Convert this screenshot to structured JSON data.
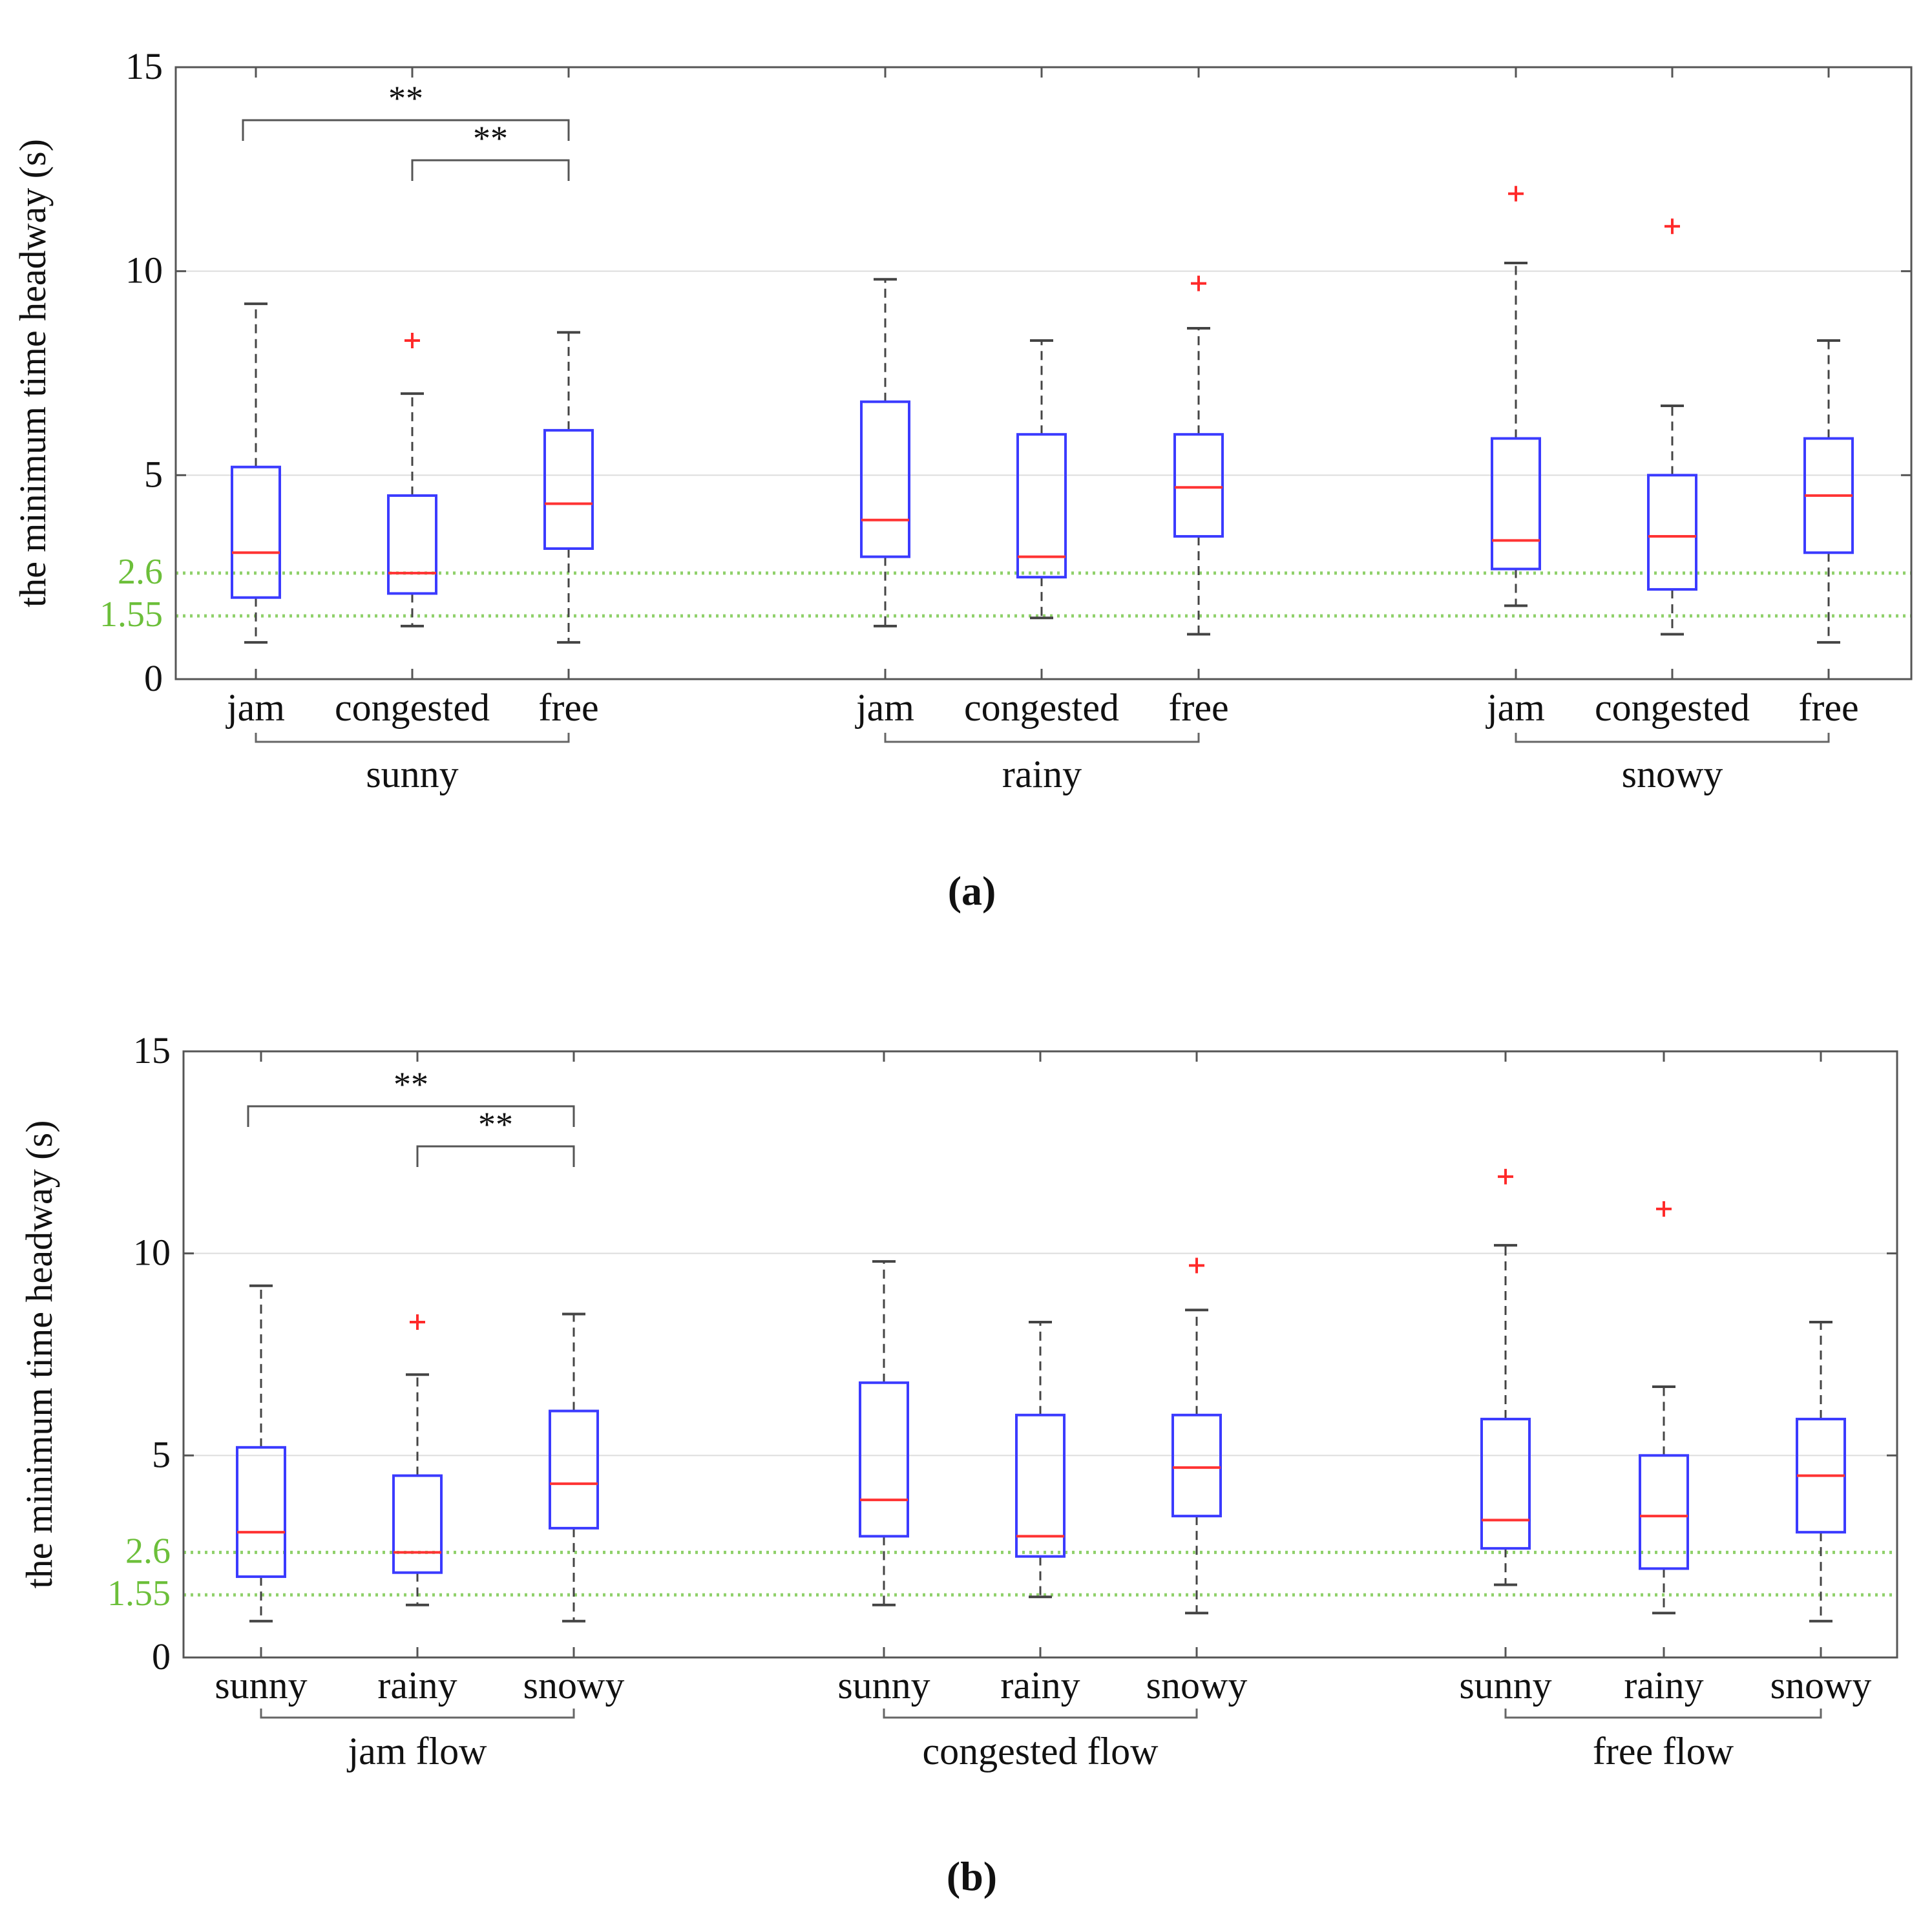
{
  "chart_data": [
    {
      "panel_label": "(a)",
      "type": "boxplot",
      "ylabel": "the minimum time headway (s)",
      "ylim": [
        0,
        15
      ],
      "yticks": [
        "0",
        "5",
        "10",
        "15"
      ],
      "grid": "horizontal",
      "reference_lines": [
        {
          "value": 2.6,
          "label": "2.6"
        },
        {
          "value": 1.55,
          "label": "1.55"
        }
      ],
      "groups": [
        {
          "label": "sunny",
          "categories": [
            "jam",
            "congested",
            "free"
          ]
        },
        {
          "label": "rainy",
          "categories": [
            "jam",
            "congested",
            "free"
          ]
        },
        {
          "label": "snowy",
          "categories": [
            "jam",
            "congested",
            "free"
          ]
        }
      ],
      "boxes": [
        {
          "whisker_low": 0.9,
          "q1": 2.0,
          "median": 3.1,
          "q3": 5.2,
          "whisker_high": 9.2,
          "outliers": []
        },
        {
          "whisker_low": 1.3,
          "q1": 2.1,
          "median": 2.6,
          "q3": 4.5,
          "whisker_high": 7.0,
          "outliers": [
            8.3
          ]
        },
        {
          "whisker_low": 0.9,
          "q1": 3.2,
          "median": 4.3,
          "q3": 6.1,
          "whisker_high": 8.5,
          "outliers": []
        },
        {
          "whisker_low": 1.3,
          "q1": 3.0,
          "median": 3.9,
          "q3": 6.8,
          "whisker_high": 9.8,
          "outliers": []
        },
        {
          "whisker_low": 1.5,
          "q1": 2.5,
          "median": 3.0,
          "q3": 6.0,
          "whisker_high": 8.3,
          "outliers": []
        },
        {
          "whisker_low": 1.1,
          "q1": 3.5,
          "median": 4.7,
          "q3": 6.0,
          "whisker_high": 8.6,
          "outliers": [
            9.7
          ]
        },
        {
          "whisker_low": 1.8,
          "q1": 2.7,
          "median": 3.4,
          "q3": 5.9,
          "whisker_high": 10.2,
          "outliers": [
            11.9
          ]
        },
        {
          "whisker_low": 1.1,
          "q1": 2.2,
          "median": 3.5,
          "q3": 5.0,
          "whisker_high": 6.7,
          "outliers": [
            11.1
          ]
        },
        {
          "whisker_low": 0.9,
          "q1": 3.1,
          "median": 4.5,
          "q3": 5.9,
          "whisker_high": 8.3,
          "outliers": []
        }
      ],
      "significance": [
        {
          "from": 0,
          "to": 2,
          "label": "**"
        },
        {
          "from": 1,
          "to": 2,
          "label": "**"
        }
      ]
    },
    {
      "panel_label": "(b)",
      "type": "boxplot",
      "ylabel": "the minimum time headway (s)",
      "ylim": [
        0,
        15
      ],
      "yticks": [
        "0",
        "5",
        "10",
        "15"
      ],
      "grid": "horizontal",
      "reference_lines": [
        {
          "value": 2.6,
          "label": "2.6"
        },
        {
          "value": 1.55,
          "label": "1.55"
        }
      ],
      "groups": [
        {
          "label": "jam flow",
          "categories": [
            "sunny",
            "rainy",
            "snowy"
          ]
        },
        {
          "label": "congested flow",
          "categories": [
            "sunny",
            "rainy",
            "snowy"
          ]
        },
        {
          "label": "free flow",
          "categories": [
            "sunny",
            "rainy",
            "snowy"
          ]
        }
      ],
      "boxes": [
        {
          "whisker_low": 0.9,
          "q1": 2.0,
          "median": 3.1,
          "q3": 5.2,
          "whisker_high": 9.2,
          "outliers": []
        },
        {
          "whisker_low": 1.3,
          "q1": 2.1,
          "median": 2.6,
          "q3": 4.5,
          "whisker_high": 7.0,
          "outliers": [
            8.3
          ]
        },
        {
          "whisker_low": 0.9,
          "q1": 3.2,
          "median": 4.3,
          "q3": 6.1,
          "whisker_high": 8.5,
          "outliers": []
        },
        {
          "whisker_low": 1.3,
          "q1": 3.0,
          "median": 3.9,
          "q3": 6.8,
          "whisker_high": 9.8,
          "outliers": []
        },
        {
          "whisker_low": 1.5,
          "q1": 2.5,
          "median": 3.0,
          "q3": 6.0,
          "whisker_high": 8.3,
          "outliers": []
        },
        {
          "whisker_low": 1.1,
          "q1": 3.5,
          "median": 4.7,
          "q3": 6.0,
          "whisker_high": 8.6,
          "outliers": [
            9.7
          ]
        },
        {
          "whisker_low": 1.8,
          "q1": 2.7,
          "median": 3.4,
          "q3": 5.9,
          "whisker_high": 10.2,
          "outliers": [
            11.9
          ]
        },
        {
          "whisker_low": 1.1,
          "q1": 2.2,
          "median": 3.5,
          "q3": 5.0,
          "whisker_high": 6.7,
          "outliers": [
            11.1
          ]
        },
        {
          "whisker_low": 0.9,
          "q1": 3.1,
          "median": 4.5,
          "q3": 5.9,
          "whisker_high": 8.3,
          "outliers": []
        }
      ],
      "significance": [
        {
          "from": 0,
          "to": 2,
          "label": "**"
        },
        {
          "from": 1,
          "to": 2,
          "label": "**"
        }
      ]
    }
  ],
  "colors": {
    "box": "#3b3bff",
    "median": "#ff3333",
    "outlier": "#ff2a2a",
    "whisker": "#444444",
    "reference": "#8fd06a",
    "reference_label": "#6cbf3a",
    "grid": "#dddddd",
    "axis": "#555555",
    "text": "#111111"
  }
}
